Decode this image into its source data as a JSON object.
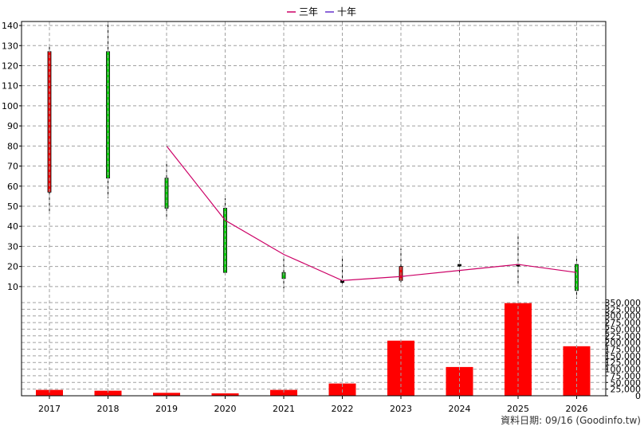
{
  "legend": [
    {
      "label": "三年",
      "color": "#cc0066"
    },
    {
      "label": "十年",
      "color": "#6633cc"
    }
  ],
  "source_label": "資料日期: 09/16 (Goodinfo.tw)",
  "colors": {
    "up": "#ff0000",
    "down": "#00cc00",
    "volume": "#ff0000",
    "ma3": "#cc0066",
    "grid": "#a0a0a0"
  },
  "chart_data": [
    {
      "type": "candlestick",
      "title": "",
      "categories": [
        "2017",
        "2018",
        "2019",
        "2020",
        "2021",
        "2022",
        "2023",
        "2024",
        "2025",
        "2026"
      ],
      "ylim": [
        2,
        142
      ],
      "yticks": [
        10,
        20,
        30,
        40,
        50,
        60,
        70,
        80,
        90,
        100,
        110,
        120,
        130,
        140
      ],
      "grid": true,
      "legend_position": "top-center",
      "candles": [
        {
          "x": "2017",
          "open": 57,
          "close": 127,
          "high": 130,
          "low": 47,
          "dir": "up"
        },
        {
          "x": "2018",
          "open": 127,
          "close": 64,
          "high": 141,
          "low": 54,
          "dir": "down"
        },
        {
          "x": "2019",
          "open": 64,
          "close": 49,
          "high": 72,
          "low": 44,
          "dir": "down"
        },
        {
          "x": "2020",
          "open": 49,
          "close": 17,
          "high": 54,
          "low": 17,
          "dir": "down"
        },
        {
          "x": "2021",
          "open": 17,
          "close": 14,
          "high": 25,
          "low": 9,
          "dir": "down"
        },
        {
          "x": "2022",
          "open": 13,
          "close": 12,
          "high": 25,
          "low": 11,
          "dir": "flat"
        },
        {
          "x": "2023",
          "open": 13,
          "close": 20,
          "high": 29,
          "low": 12,
          "dir": "up"
        },
        {
          "x": "2024",
          "open": 21,
          "close": 21,
          "high": 23,
          "low": 17,
          "dir": "flat"
        },
        {
          "x": "2025",
          "open": 21,
          "close": 21,
          "high": 35,
          "low": 11,
          "dir": "flat"
        },
        {
          "x": "2026",
          "open": 21,
          "close": 8,
          "high": 24,
          "low": 4,
          "dir": "down"
        }
      ],
      "series": [
        {
          "name": "三年",
          "x": [
            "2019",
            "2020",
            "2021",
            "2022",
            "2023",
            "2024",
            "2025",
            "2026"
          ],
          "values": [
            80,
            43,
            26,
            13,
            15,
            18,
            21,
            17
          ]
        }
      ]
    },
    {
      "type": "bar",
      "title": "",
      "categories": [
        "2017",
        "2018",
        "2019",
        "2020",
        "2021",
        "2022",
        "2023",
        "2024",
        "2025",
        "2026"
      ],
      "values": [
        22000,
        19000,
        11000,
        9000,
        22000,
        46000,
        207000,
        108000,
        348000,
        186000
      ],
      "ylim": [
        0,
        350000
      ],
      "yticks": [
        0,
        25000,
        50000,
        75000,
        100000,
        125000,
        150000,
        175000,
        200000,
        225000,
        250000,
        275000,
        300000,
        325000,
        350000
      ],
      "ytick_labels": [
        "0",
        "25,000",
        "50,000",
        "75,000",
        "100,000",
        "125,000",
        "150,000",
        "175,000",
        "200,000",
        "225,000",
        "250,000",
        "275,000",
        "300,000",
        "325,000",
        "350,000"
      ],
      "grid": true
    }
  ]
}
